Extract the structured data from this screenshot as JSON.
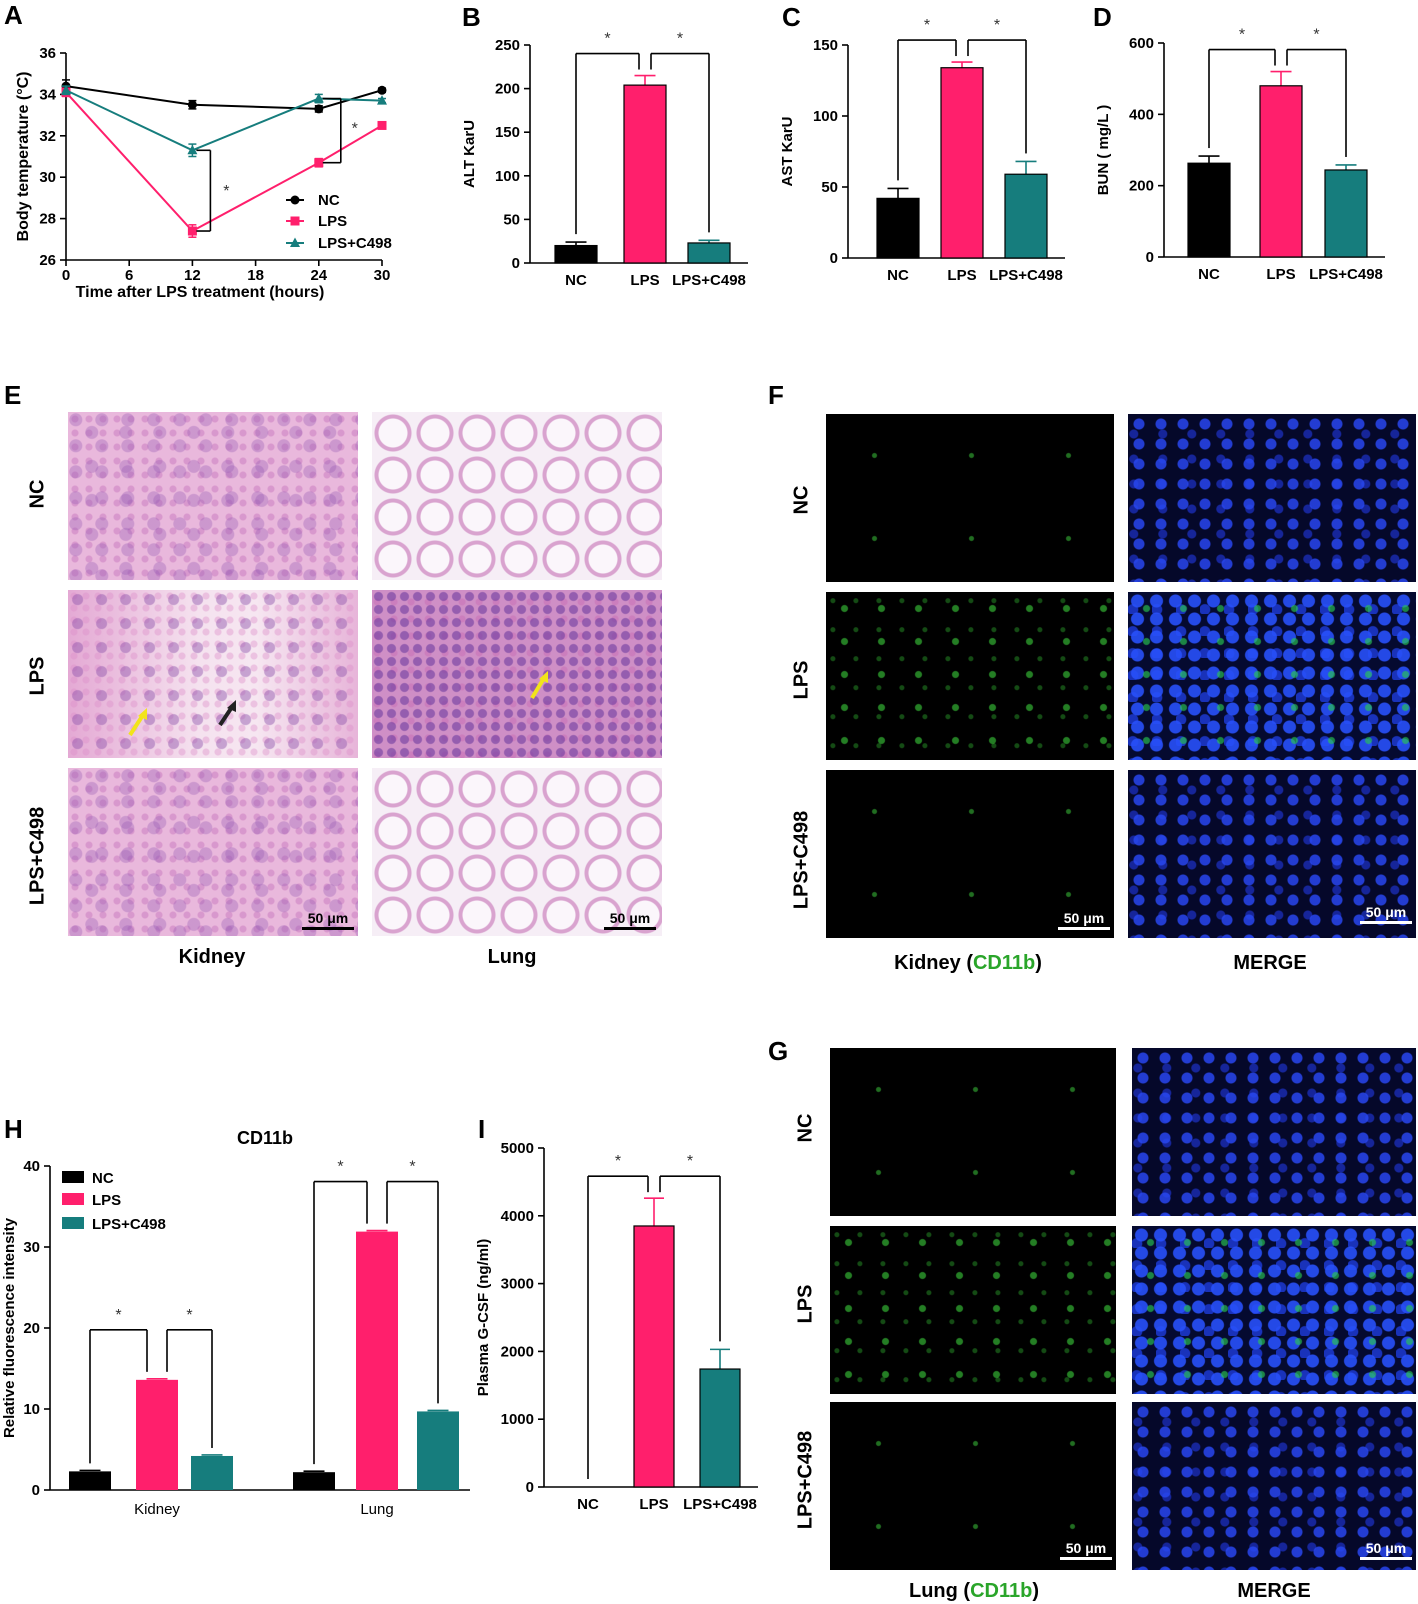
{
  "panel_letters": {
    "A": "A",
    "B": "B",
    "C": "C",
    "D": "D",
    "E": "E",
    "F": "F",
    "G": "G",
    "H": "H",
    "I": "I"
  },
  "colors": {
    "NC": "#000000",
    "LPS": "#ff1f6c",
    "LPS+C498": "#167d7d",
    "green_text": "#2aa52a"
  },
  "chart_data": [
    {
      "id": "A",
      "type": "line",
      "xlabel": "Time after LPS treatment (hours)",
      "ylabel": "Body temperature (°C)",
      "x_ticks": [
        0,
        6,
        12,
        18,
        24,
        30
      ],
      "y_ticks": [
        26,
        28,
        30,
        32,
        34,
        36
      ],
      "xlim": [
        0,
        30
      ],
      "ylim": [
        26,
        36
      ],
      "series": [
        {
          "name": "NC",
          "x": [
            0,
            12,
            24,
            30
          ],
          "y": [
            34.4,
            33.5,
            33.3,
            34.2
          ],
          "err": [
            0.3,
            0.2,
            0.15,
            0.1
          ],
          "marker": "circle"
        },
        {
          "name": "LPS",
          "x": [
            0,
            12,
            24,
            30
          ],
          "y": [
            34.1,
            27.4,
            30.7,
            32.5
          ],
          "err": [
            0.2,
            0.3,
            0.2,
            0.1
          ],
          "marker": "square"
        },
        {
          "name": "LPS+C498",
          "x": [
            0,
            12,
            24,
            30
          ],
          "y": [
            34.2,
            31.3,
            33.8,
            33.7
          ],
          "err": [
            0.2,
            0.3,
            0.2,
            0.1
          ],
          "marker": "triangle"
        }
      ],
      "sig": [
        "*",
        "*"
      ]
    },
    {
      "id": "B",
      "type": "bar",
      "ylabel": "ALT KarU",
      "categories": [
        "NC",
        "LPS",
        "LPS+C498"
      ],
      "values": [
        20,
        204,
        23
      ],
      "err": [
        4,
        11,
        3
      ],
      "y_ticks": [
        0,
        50,
        100,
        150,
        200,
        250
      ],
      "ylim": [
        0,
        250
      ],
      "sig": [
        "*",
        "*"
      ]
    },
    {
      "id": "C",
      "type": "bar",
      "ylabel": "AST KarU",
      "categories": [
        "NC",
        "LPS",
        "LPS+C498"
      ],
      "values": [
        42,
        134,
        59
      ],
      "err": [
        7,
        4,
        9
      ],
      "y_ticks": [
        0,
        50,
        100,
        150
      ],
      "ylim": [
        0,
        150
      ],
      "sig": [
        "*",
        "*"
      ]
    },
    {
      "id": "D",
      "type": "bar",
      "ylabel": "BUN ( mg/L )",
      "categories": [
        "NC",
        "LPS",
        "LPS+C498"
      ],
      "values": [
        263,
        480,
        244
      ],
      "err": [
        20,
        40,
        14
      ],
      "y_ticks": [
        0,
        200,
        400,
        600
      ],
      "ylim": [
        0,
        600
      ],
      "sig": [
        "*",
        "*"
      ]
    },
    {
      "id": "H",
      "type": "bar",
      "title": "CD11b",
      "ylabel": "Relative fluorescence intensity",
      "categories": [
        "Kidney",
        "Lung"
      ],
      "series": [
        {
          "name": "NC",
          "values": [
            2.3,
            2.2
          ]
        },
        {
          "name": "LPS",
          "values": [
            13.6,
            31.9
          ]
        },
        {
          "name": "LPS+C498",
          "values": [
            4.2,
            9.7
          ]
        }
      ],
      "y_ticks": [
        0,
        10,
        20,
        30,
        40
      ],
      "ylim": [
        0,
        40
      ],
      "sig": [
        "*",
        "*",
        "*",
        "*"
      ]
    },
    {
      "id": "I",
      "type": "bar",
      "ylabel": "Plasma G-CSF (ng/ml)",
      "categories": [
        "NC",
        "LPS",
        "LPS+C498"
      ],
      "values": [
        0,
        3850,
        1740
      ],
      "err": [
        0,
        410,
        290
      ],
      "y_ticks": [
        0,
        1000,
        2000,
        3000,
        4000,
        5000
      ],
      "ylim": [
        0,
        5000
      ],
      "sig": [
        "*",
        "*"
      ]
    }
  ],
  "panel_E": {
    "rows": [
      "NC",
      "LPS",
      "LPS+C498"
    ],
    "cols": [
      "Kidney",
      "Lung"
    ],
    "scale_bar": "50 μm"
  },
  "panel_F": {
    "rows": [
      "NC",
      "LPS",
      "LPS+C498"
    ],
    "col1_prefix": "Kidney (",
    "col1_marker": "CD11b",
    "col1_suffix": ")",
    "col2": "MERGE",
    "scale_bar": "50 μm"
  },
  "panel_G": {
    "rows": [
      "NC",
      "LPS",
      "LPS+C498"
    ],
    "col1_prefix": "Lung (",
    "col1_marker": "CD11b",
    "col1_suffix": ")",
    "col2": "MERGE",
    "scale_bar": "50 μm"
  }
}
